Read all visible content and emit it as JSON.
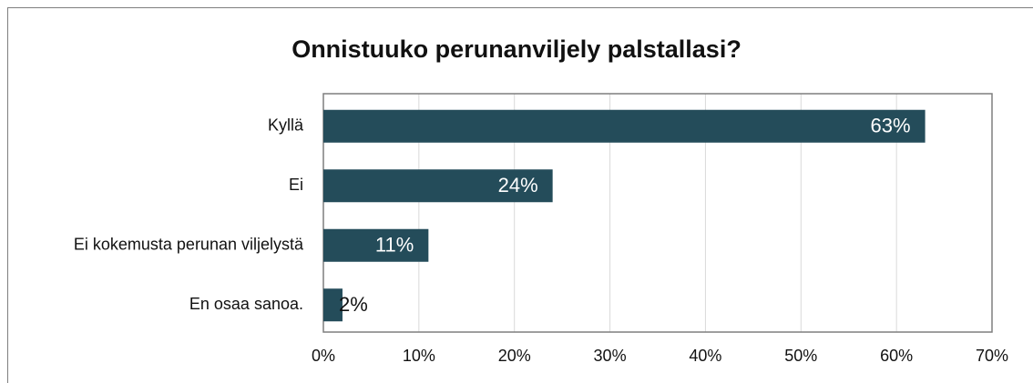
{
  "chart_data": {
    "type": "bar",
    "orientation": "horizontal",
    "title": "Onnistuuko perunanviljely palstallasi?",
    "categories": [
      "Kyllä",
      "Ei",
      "Ei kokemusta perunan viljelystä",
      "En osaa sanoa."
    ],
    "values": [
      63,
      24,
      11,
      2
    ],
    "value_labels": [
      "63%",
      "24%",
      "11%",
      "2%"
    ],
    "color": "#244c5a",
    "xlim": [
      0,
      70
    ],
    "xticks": [
      {
        "value": 0,
        "label": "0%"
      },
      {
        "value": 10,
        "label": "10%"
      },
      {
        "value": 20,
        "label": "20%"
      },
      {
        "value": 30,
        "label": "30%"
      },
      {
        "value": 40,
        "label": "40%"
      },
      {
        "value": 50,
        "label": "50%"
      },
      {
        "value": 60,
        "label": "60%"
      },
      {
        "value": 70,
        "label": "70%"
      }
    ],
    "grid": true
  }
}
